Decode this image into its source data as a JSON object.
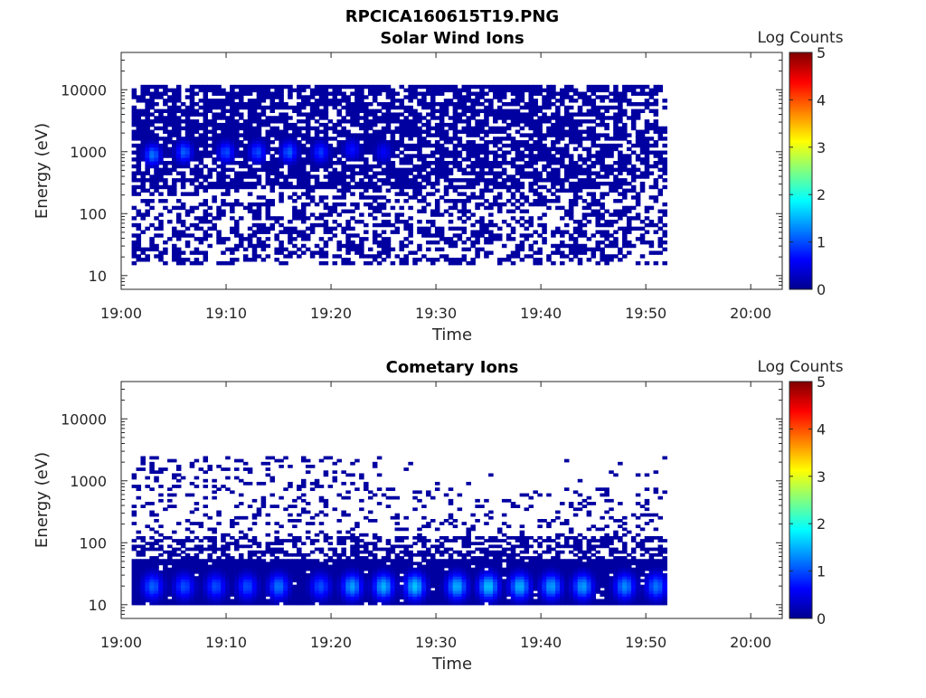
{
  "page_title": "RPCICA160615T19.PNG",
  "colormap": [
    "#00008f",
    "#0000ff",
    "#0080ff",
    "#00ffff",
    "#80ff80",
    "#ffff00",
    "#ff8000",
    "#ff0000",
    "#800000"
  ],
  "chart_data": [
    {
      "type": "heatmap",
      "title": "Solar Wind Ions",
      "xlabel": "Time",
      "ylabel": "Energy (eV)",
      "xticks": [
        "19:00",
        "19:10",
        "19:20",
        "19:30",
        "19:40",
        "19:50",
        "20:00"
      ],
      "yticks": [
        "10",
        "100",
        "1000",
        "10000"
      ],
      "y_scale": "log",
      "ylim": [
        6,
        40000
      ],
      "xlim": [
        "19:00",
        "20:03"
      ],
      "data_time_range": [
        "19:01",
        "19:52"
      ],
      "colorbar": {
        "label": "Log Counts",
        "ticks": [
          "0",
          "1",
          "2",
          "3",
          "4",
          "5"
        ],
        "range": [
          0,
          5
        ]
      },
      "grid": false,
      "peaks": [
        {
          "time": "19:03",
          "energy_eV": 900,
          "log_counts": 1.2
        },
        {
          "time": "19:06",
          "energy_eV": 1000,
          "log_counts": 1.1
        },
        {
          "time": "19:10",
          "energy_eV": 1000,
          "log_counts": 1.0
        },
        {
          "time": "19:13",
          "energy_eV": 1000,
          "log_counts": 1.0
        },
        {
          "time": "19:16",
          "energy_eV": 1000,
          "log_counts": 1.1
        },
        {
          "time": "19:19",
          "energy_eV": 1000,
          "log_counts": 0.9
        },
        {
          "time": "19:22",
          "energy_eV": 1100,
          "log_counts": 0.7
        },
        {
          "time": "19:25",
          "energy_eV": 1000,
          "log_counts": 0.6
        }
      ]
    },
    {
      "type": "heatmap",
      "title": "Cometary Ions",
      "xlabel": "Time",
      "ylabel": "Energy (eV)",
      "xticks": [
        "19:00",
        "19:10",
        "19:20",
        "19:30",
        "19:40",
        "19:50",
        "20:00"
      ],
      "yticks": [
        "10",
        "100",
        "1000",
        "10000"
      ],
      "y_scale": "log",
      "ylim": [
        6,
        40000
      ],
      "xlim": [
        "19:00",
        "20:03"
      ],
      "data_time_range": [
        "19:01",
        "19:52"
      ],
      "colorbar": {
        "label": "Log Counts",
        "ticks": [
          "0",
          "1",
          "2",
          "3",
          "4",
          "5"
        ],
        "range": [
          0,
          5
        ]
      },
      "grid": false,
      "peaks": [
        {
          "time": "19:03",
          "energy_eV": 20,
          "log_counts": 1.1
        },
        {
          "time": "19:06",
          "energy_eV": 20,
          "log_counts": 1.0
        },
        {
          "time": "19:09",
          "energy_eV": 20,
          "log_counts": 1.0
        },
        {
          "time": "19:12",
          "energy_eV": 20,
          "log_counts": 1.0
        },
        {
          "time": "19:15",
          "energy_eV": 20,
          "log_counts": 1.2
        },
        {
          "time": "19:19",
          "energy_eV": 20,
          "log_counts": 1.0
        },
        {
          "time": "19:22",
          "energy_eV": 20,
          "log_counts": 1.4
        },
        {
          "time": "19:25",
          "energy_eV": 20,
          "log_counts": 1.5
        },
        {
          "time": "19:28",
          "energy_eV": 20,
          "log_counts": 1.6
        },
        {
          "time": "19:32",
          "energy_eV": 20,
          "log_counts": 1.5
        },
        {
          "time": "19:35",
          "energy_eV": 20,
          "log_counts": 1.6
        },
        {
          "time": "19:38",
          "energy_eV": 20,
          "log_counts": 1.5
        },
        {
          "time": "19:41",
          "energy_eV": 20,
          "log_counts": 1.4
        },
        {
          "time": "19:44",
          "energy_eV": 20,
          "log_counts": 1.4
        },
        {
          "time": "19:48",
          "energy_eV": 20,
          "log_counts": 1.3
        },
        {
          "time": "19:51",
          "energy_eV": 20,
          "log_counts": 1.2
        }
      ]
    }
  ]
}
